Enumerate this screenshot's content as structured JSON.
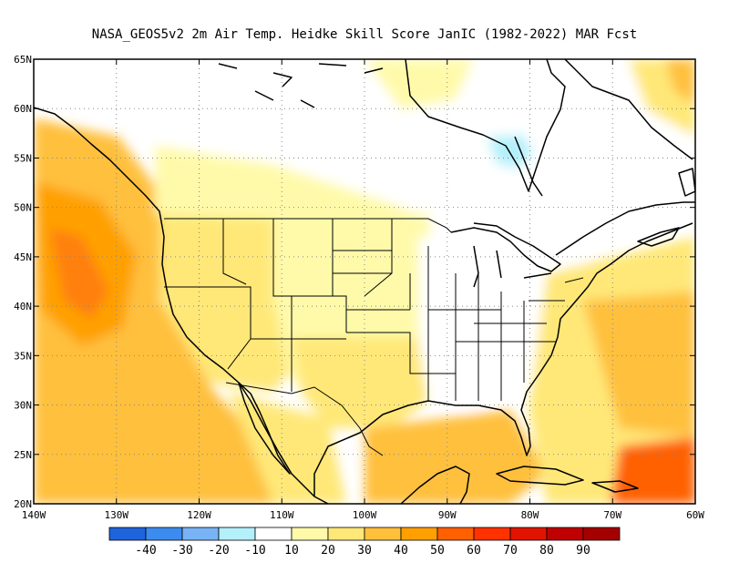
{
  "title": "NASA_GEOS5v2  2m Air Temp. Heidke Skill Score JanIC (1982-2022) MAR Fcst",
  "map": {
    "lon_range": [
      -140,
      -60
    ],
    "lat_range": [
      20,
      65
    ],
    "x_ticks": [
      {
        "lon": -140,
        "label": "140W"
      },
      {
        "lon": -130,
        "label": "130W"
      },
      {
        "lon": -120,
        "label": "120W"
      },
      {
        "lon": -110,
        "label": "110W"
      },
      {
        "lon": -100,
        "label": "100W"
      },
      {
        "lon": -90,
        "label": "90W"
      },
      {
        "lon": -80,
        "label": "80W"
      },
      {
        "lon": -70,
        "label": "70W"
      },
      {
        "lon": -60,
        "label": "60W"
      }
    ],
    "y_ticks": [
      {
        "lat": 65,
        "label": "65N"
      },
      {
        "lat": 60,
        "label": "60N"
      },
      {
        "lat": 55,
        "label": "55N"
      },
      {
        "lat": 50,
        "label": "50N"
      },
      {
        "lat": 45,
        "label": "45N"
      },
      {
        "lat": 40,
        "label": "40N"
      },
      {
        "lat": 35,
        "label": "35N"
      },
      {
        "lat": 30,
        "label": "30N"
      },
      {
        "lat": 25,
        "label": "25N"
      },
      {
        "lat": 20,
        "label": "20N"
      }
    ],
    "grid": "dotted",
    "regions": [
      {
        "name": "northern-canada",
        "level": 10
      },
      {
        "name": "hudson-bay-interior",
        "level": -10
      },
      {
        "name": "pacific-ocean",
        "level": 40
      },
      {
        "name": "pacific-max",
        "level": 50
      },
      {
        "name": "western-us",
        "level": 30
      },
      {
        "name": "great-plains",
        "level": 20
      },
      {
        "name": "southeast-us",
        "level": 0
      },
      {
        "name": "gulf-of-mexico",
        "level": 40
      },
      {
        "name": "atlantic-ocean",
        "level": 30
      },
      {
        "name": "caribbean-max",
        "level": 60
      }
    ]
  },
  "colorbar": {
    "colors": [
      "#1e64dc",
      "#3c8cf0",
      "#78b4f5",
      "#b4f0fa",
      "#ffffff",
      "#fffaaa",
      "#ffe878",
      "#ffc03c",
      "#ffa000",
      "#ff6000",
      "#ff3200",
      "#e11400",
      "#c00000",
      "#a50000"
    ],
    "labels": [
      "-40",
      "-30",
      "-20",
      "-10",
      "10",
      "20",
      "30",
      "40",
      "50",
      "60",
      "70",
      "80",
      "90"
    ]
  }
}
